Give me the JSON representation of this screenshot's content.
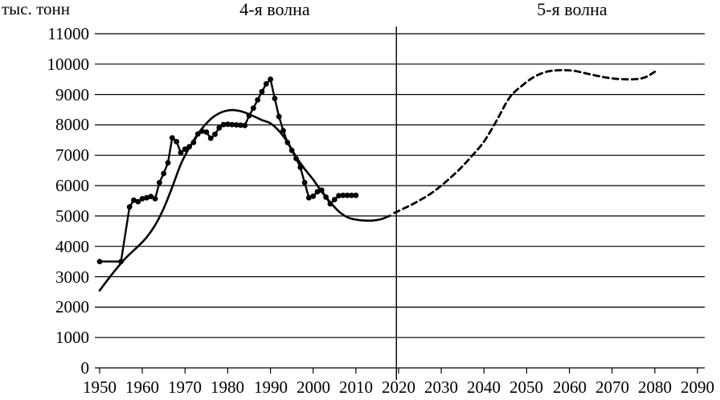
{
  "chart_data": {
    "type": "line",
    "ylabel": "тыс. тонн",
    "titles": {
      "left": "4-я волна",
      "right": "5-я волна"
    },
    "xlim": [
      1950,
      2090
    ],
    "ylim": [
      0,
      11000
    ],
    "x_ticks": [
      1950,
      1960,
      1970,
      1980,
      1990,
      2000,
      2010,
      2020,
      2030,
      2040,
      2050,
      2060,
      2070,
      2080,
      2090
    ],
    "y_ticks": [
      0,
      1000,
      2000,
      3000,
      4000,
      5000,
      6000,
      7000,
      8000,
      9000,
      10000,
      11000
    ],
    "grid": "horizontal",
    "legend": "none",
    "divider_year": 2019.5,
    "colors": {
      "line": "#000000",
      "grid": "#000000",
      "background": "#ffffff"
    },
    "series": [
      {
        "id": "observed-4th-wave",
        "style": "solid",
        "markers": true,
        "smooth": false,
        "points": [
          [
            1950,
            3500
          ],
          [
            1955,
            3500
          ],
          [
            1957,
            5300
          ],
          [
            1958,
            5520
          ],
          [
            1959,
            5470
          ],
          [
            1960,
            5570
          ],
          [
            1961,
            5600
          ],
          [
            1962,
            5640
          ],
          [
            1963,
            5570
          ],
          [
            1964,
            6100
          ],
          [
            1965,
            6400
          ],
          [
            1966,
            6750
          ],
          [
            1967,
            7570
          ],
          [
            1968,
            7450
          ],
          [
            1969,
            7080
          ],
          [
            1970,
            7200
          ],
          [
            1971,
            7280
          ],
          [
            1972,
            7420
          ],
          [
            1973,
            7700
          ],
          [
            1974,
            7790
          ],
          [
            1975,
            7760
          ],
          [
            1976,
            7560
          ],
          [
            1977,
            7690
          ],
          [
            1978,
            7900
          ],
          [
            1979,
            8010
          ],
          [
            1980,
            8020
          ],
          [
            1981,
            8010
          ],
          [
            1982,
            8000
          ],
          [
            1983,
            7990
          ],
          [
            1984,
            7980
          ],
          [
            1985,
            8300
          ],
          [
            1986,
            8550
          ],
          [
            1987,
            8820
          ],
          [
            1988,
            9090
          ],
          [
            1989,
            9350
          ],
          [
            1990,
            9500
          ],
          [
            1991,
            8870
          ],
          [
            1992,
            8270
          ],
          [
            1993,
            7810
          ],
          [
            1994,
            7420
          ],
          [
            1995,
            7160
          ],
          [
            1996,
            6890
          ],
          [
            1997,
            6600
          ],
          [
            1998,
            6100
          ],
          [
            1999,
            5600
          ],
          [
            2000,
            5650
          ],
          [
            2001,
            5800
          ],
          [
            2002,
            5850
          ],
          [
            2003,
            5620
          ],
          [
            2004,
            5400
          ],
          [
            2005,
            5540
          ],
          [
            2006,
            5670
          ],
          [
            2007,
            5680
          ],
          [
            2008,
            5680
          ],
          [
            2009,
            5680
          ],
          [
            2010,
            5680
          ]
        ]
      },
      {
        "id": "trend-4th-wave",
        "style": "solid",
        "markers": false,
        "smooth": true,
        "points": [
          [
            1950,
            2550
          ],
          [
            1953,
            3100
          ],
          [
            1956,
            3600
          ],
          [
            1959,
            4000
          ],
          [
            1961,
            4300
          ],
          [
            1963,
            4700
          ],
          [
            1965,
            5250
          ],
          [
            1967,
            5950
          ],
          [
            1969,
            6700
          ],
          [
            1971,
            7250
          ],
          [
            1973,
            7700
          ],
          [
            1975,
            8050
          ],
          [
            1977,
            8300
          ],
          [
            1979,
            8440
          ],
          [
            1981,
            8490
          ],
          [
            1983,
            8450
          ],
          [
            1985,
            8350
          ],
          [
            1988,
            8160
          ],
          [
            1990,
            8050
          ],
          [
            1992,
            7800
          ],
          [
            1994,
            7430
          ],
          [
            1996,
            6950
          ],
          [
            1998,
            6550
          ],
          [
            2000,
            6200
          ],
          [
            2002,
            5800
          ],
          [
            2004,
            5450
          ],
          [
            2006,
            5150
          ],
          [
            2008,
            4960
          ],
          [
            2010,
            4880
          ],
          [
            2012,
            4850
          ],
          [
            2014,
            4850
          ],
          [
            2016,
            4900
          ],
          [
            2018,
            5010
          ]
        ]
      },
      {
        "id": "forecast-5th-wave",
        "style": "dashed",
        "markers": false,
        "smooth": true,
        "points": [
          [
            2019,
            5100
          ],
          [
            2022,
            5300
          ],
          [
            2025,
            5520
          ],
          [
            2028,
            5780
          ],
          [
            2031,
            6120
          ],
          [
            2034,
            6500
          ],
          [
            2037,
            6950
          ],
          [
            2040,
            7450
          ],
          [
            2043,
            8150
          ],
          [
            2046,
            8900
          ],
          [
            2049,
            9300
          ],
          [
            2052,
            9600
          ],
          [
            2055,
            9760
          ],
          [
            2058,
            9800
          ],
          [
            2061,
            9780
          ],
          [
            2064,
            9690
          ],
          [
            2067,
            9600
          ],
          [
            2070,
            9530
          ],
          [
            2073,
            9500
          ],
          [
            2076,
            9510
          ],
          [
            2078,
            9580
          ],
          [
            2080,
            9750
          ]
        ]
      }
    ]
  }
}
